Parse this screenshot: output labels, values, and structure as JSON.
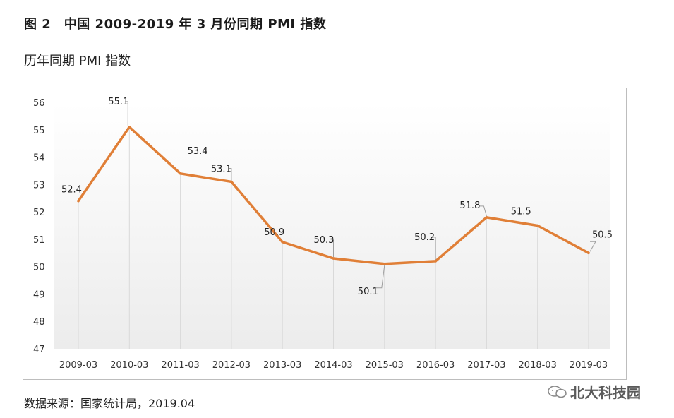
{
  "figure": {
    "title": "图 2　中国 2009-2019 年 3 月份同期 PMI 指数",
    "subtitle": "历年同期 PMI 指数"
  },
  "source": "数据来源：国家统计局，2019.04",
  "brand": {
    "name": "北大科技园",
    "icon": "wechat-icon"
  },
  "colors": {
    "line": "#E07F37",
    "grid": "#d9d9d9",
    "leader": "#9e9e9e"
  },
  "chart_data": {
    "type": "line",
    "title": "历年同期 PMI 指数",
    "categories": [
      "2009-03",
      "2010-03",
      "2011-03",
      "2012-03",
      "2013-03",
      "2014-03",
      "2015-03",
      "2016-03",
      "2017-03",
      "2018-03",
      "2019-03"
    ],
    "values": [
      52.4,
      55.1,
      53.4,
      53.1,
      50.9,
      50.3,
      50.1,
      50.2,
      51.8,
      51.5,
      50.5
    ],
    "data_labels": [
      "52.4",
      "55.1",
      "53.4",
      "53.1",
      "50.9",
      "50.3",
      "50.1",
      "50.2",
      "51.8",
      "51.5",
      "50.5"
    ],
    "yticks": [
      "47",
      "48",
      "49",
      "50",
      "51",
      "52",
      "53",
      "54",
      "55",
      "56"
    ],
    "ylim": [
      47,
      56
    ],
    "xlabel": "",
    "ylabel": "",
    "grid": "vertical drop lines"
  }
}
